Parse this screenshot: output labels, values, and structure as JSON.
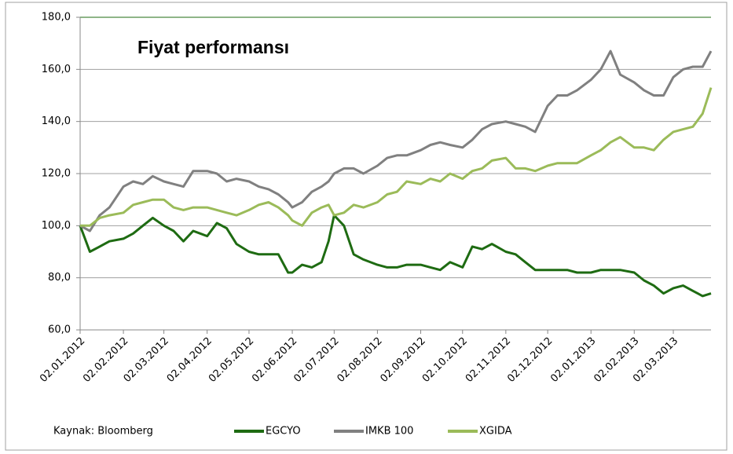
{
  "chart_data": {
    "type": "line",
    "title": "Fiyat performansı",
    "source": "Kaynak: Bloomberg",
    "x": [
      "02.01.2012",
      "09.01.2012",
      "16.01.2012",
      "23.01.2012",
      "02.02.2012",
      "09.02.2012",
      "16.02.2012",
      "23.02.2012",
      "02.03.2012",
      "09.03.2012",
      "16.03.2012",
      "23.03.2012",
      "02.04.2012",
      "09.04.2012",
      "16.04.2012",
      "23.04.2012",
      "02.05.2012",
      "09.05.2012",
      "16.05.2012",
      "23.05.2012",
      "30.05.2012",
      "02.06.2012",
      "09.06.2012",
      "16.06.2012",
      "23.06.2012",
      "28.06.2012",
      "02.07.2012",
      "09.07.2012",
      "16.07.2012",
      "23.07.2012",
      "02.08.2012",
      "09.08.2012",
      "16.08.2012",
      "23.08.2012",
      "02.09.2012",
      "09.09.2012",
      "16.09.2012",
      "23.09.2012",
      "02.10.2012",
      "09.10.2012",
      "16.10.2012",
      "23.10.2012",
      "02.11.2012",
      "09.11.2012",
      "16.11.2012",
      "23.11.2012",
      "02.12.2012",
      "09.12.2012",
      "16.12.2012",
      "23.12.2012",
      "02.01.2013",
      "09.01.2013",
      "16.01.2013",
      "23.01.2013",
      "02.02.2013",
      "09.02.2013",
      "16.02.2013",
      "23.02.2013",
      "02.03.2013",
      "09.03.2013",
      "16.03.2013",
      "23.03.2013",
      "29.03.2013"
    ],
    "series": [
      {
        "name": "EGCYO",
        "color": "#1e6b12",
        "values": [
          100,
          90,
          92,
          94,
          95,
          97,
          100,
          103,
          100,
          98,
          94,
          98,
          96,
          101,
          99,
          93,
          90,
          89,
          89,
          89,
          82,
          82,
          85,
          84,
          86,
          94,
          104,
          100,
          89,
          87,
          85,
          84,
          84,
          85,
          85,
          84,
          83,
          86,
          84,
          92,
          91,
          93,
          90,
          89,
          86,
          83,
          83,
          83,
          83,
          82,
          82,
          83,
          83,
          83,
          82,
          79,
          77,
          74,
          76,
          77,
          75,
          73,
          74
        ]
      },
      {
        "name": "IMKB 100",
        "color": "#808080",
        "values": [
          100,
          98,
          104,
          107,
          115,
          117,
          116,
          119,
          117,
          116,
          115,
          121,
          121,
          120,
          117,
          118,
          117,
          115,
          114,
          112,
          109,
          107,
          109,
          113,
          115,
          117,
          120,
          122,
          122,
          120,
          123,
          126,
          127,
          127,
          129,
          131,
          132,
          131,
          130,
          133,
          137,
          139,
          140,
          139,
          138,
          136,
          146,
          150,
          150,
          152,
          156,
          160,
          167,
          158,
          155,
          152,
          150,
          150,
          157,
          160,
          161,
          161,
          167
        ]
      },
      {
        "name": "XGIDA",
        "color": "#9bbb59",
        "values": [
          100,
          100,
          103,
          104,
          105,
          108,
          109,
          110,
          110,
          107,
          106,
          107,
          107,
          106,
          105,
          104,
          106,
          108,
          109,
          107,
          104,
          102,
          100,
          105,
          107,
          108,
          104,
          105,
          108,
          107,
          109,
          112,
          113,
          117,
          116,
          118,
          117,
          120,
          118,
          121,
          122,
          125,
          126,
          122,
          122,
          121,
          123,
          124,
          124,
          124,
          127,
          129,
          132,
          134,
          130,
          130,
          129,
          133,
          136,
          137,
          138,
          143,
          153
        ]
      }
    ],
    "xlim": [
      "02.01.2012",
      "29.03.2013"
    ],
    "xticks": [
      "02.01.2012",
      "02.02.2012",
      "02.03.2012",
      "02.04.2012",
      "02.05.2012",
      "02.06.2012",
      "02.07.2012",
      "02.08.2012",
      "02.09.2012",
      "02.10.2012",
      "02.11.2012",
      "02.12.2012",
      "02.01.2013",
      "02.02.2013",
      "02.03.2013"
    ],
    "ylim": [
      60,
      180
    ],
    "yticks": [
      {
        "value": 60,
        "label": "60,0"
      },
      {
        "value": 80,
        "label": "80,0"
      },
      {
        "value": 100,
        "label": "100,0"
      },
      {
        "value": 120,
        "label": "120,0"
      },
      {
        "value": 140,
        "label": "140,0"
      },
      {
        "value": 160,
        "label": "160,0"
      },
      {
        "value": 180,
        "label": "180,0"
      }
    ],
    "grid": true
  }
}
